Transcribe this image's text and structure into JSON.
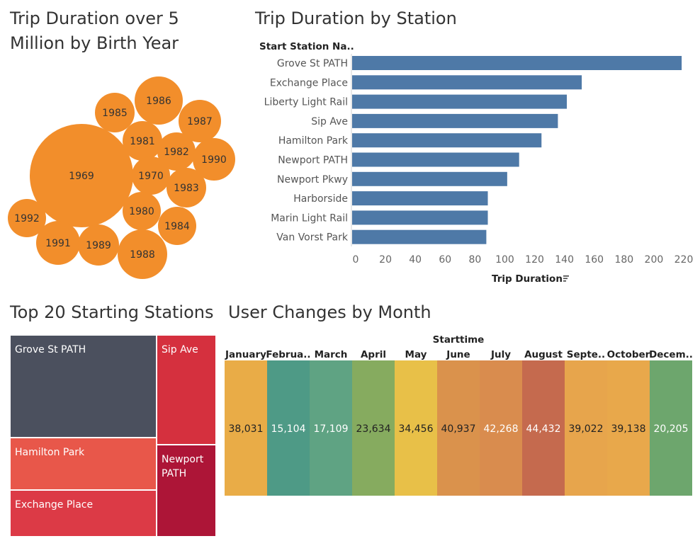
{
  "bubble_panel": {
    "title_line1": "Trip Duration over 5",
    "title_line2": "Million by Birth Year"
  },
  "bar_panel": {
    "title": "Trip Duration by Station",
    "column_header": "Start Station Na..",
    "axis_title": "Trip Duration",
    "sort_icon": "sort-icon"
  },
  "treemap_panel": {
    "title": "Top 20 Starting Stations"
  },
  "heat_panel": {
    "title": "User Changes by Month",
    "column_header": "Starttime"
  },
  "colors": {
    "bar": "#4e79a7",
    "bubble": "#f28e2b",
    "treemap_dark": "#4b505e"
  },
  "chart_data": [
    {
      "type": "bubble",
      "title": "Trip Duration over 5 Million by Birth Year",
      "categories": [
        "1969",
        "1986",
        "1985",
        "1987",
        "1981",
        "1982",
        "1990",
        "1970",
        "1983",
        "1980",
        "1984",
        "1992",
        "1991",
        "1989",
        "1988"
      ]
    },
    {
      "type": "bar",
      "title": "Trip Duration by Station",
      "categories": [
        "Grove St PATH",
        "Exchange Place",
        "Liberty Light Rail",
        "Sip Ave",
        "Hamilton Park",
        "Newport PATH",
        "Newport Pkwy",
        "Harborside",
        "Marin Light Rail",
        "Van Vorst Park"
      ],
      "values": [
        221,
        154,
        144,
        138,
        127,
        112,
        104,
        91,
        91,
        90
      ],
      "xlabel": "Trip Duration",
      "ylabel": "Start Station Na..",
      "xlim": [
        0,
        220
      ],
      "xticks": [
        "0",
        "20",
        "40",
        "60",
        "80",
        "100",
        "120",
        "140",
        "160",
        "180",
        "200",
        "220"
      ]
    },
    {
      "type": "treemap",
      "title": "Top 20 Starting Stations",
      "categories": [
        "Grove St PATH",
        "Sip Ave",
        "Hamilton Park",
        "Newport PATH",
        "Exchange Place"
      ]
    },
    {
      "type": "heatmap",
      "title": "User Changes by Month",
      "xlabel": "Starttime",
      "categories": [
        "January",
        "Februa..",
        "March",
        "April",
        "May",
        "June",
        "July",
        "August",
        "Septe..",
        "October",
        "Decem.."
      ],
      "labels": [
        "38,031",
        "15,104",
        "17,109",
        "23,634",
        "34,456",
        "40,937",
        "42,268",
        "44,432",
        "39,022",
        "39,138",
        "20,205"
      ],
      "values": [
        38031,
        15104,
        17109,
        23634,
        34456,
        40937,
        42268,
        44432,
        39022,
        39138,
        20205
      ]
    }
  ]
}
